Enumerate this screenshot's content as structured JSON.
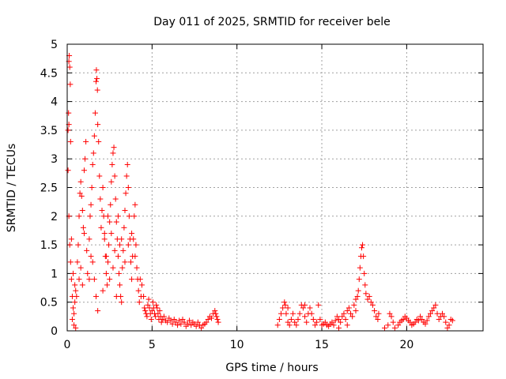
{
  "chart_data": {
    "type": "scatter",
    "title": "Day 011 of 2025, SRMTID for receiver bele",
    "xlabel": "GPS time / hours",
    "ylabel": "SRMTID / TECUs",
    "xlim": [
      0,
      24.5
    ],
    "ylim": [
      0,
      5
    ],
    "x_ticks": [
      0,
      5,
      10,
      15,
      20
    ],
    "x_tick_labels": [
      "0",
      "5",
      "10",
      "15",
      "20"
    ],
    "y_ticks": [
      0,
      0.5,
      1,
      1.5,
      2,
      2.5,
      3,
      3.5,
      4,
      4.5,
      5
    ],
    "y_tick_labels": [
      "0",
      "0.5",
      "1",
      "1.5",
      "2",
      "2.5",
      "3",
      "3.5",
      "4",
      "4.5",
      "5"
    ],
    "grid": true,
    "marker": "+",
    "series": [
      {
        "name": "SRMTID",
        "color": "#ff0000",
        "points": [
          [
            0.05,
            3.5
          ],
          [
            0.08,
            3.8
          ],
          [
            0.1,
            4.7
          ],
          [
            0.12,
            4.8
          ],
          [
            0.15,
            4.6
          ],
          [
            0.18,
            4.3
          ],
          [
            0.1,
            3.6
          ],
          [
            0.2,
            3.3
          ],
          [
            0.05,
            2.8
          ],
          [
            0.1,
            2.0
          ],
          [
            0.15,
            1.5
          ],
          [
            0.2,
            1.2
          ],
          [
            0.25,
            0.9
          ],
          [
            0.3,
            0.6
          ],
          [
            0.35,
            0.4
          ],
          [
            0.4,
            0.3
          ],
          [
            0.45,
            0.5
          ],
          [
            0.5,
            0.7
          ],
          [
            0.3,
            0.2
          ],
          [
            0.4,
            0.1
          ],
          [
            0.5,
            0.05
          ],
          [
            0.25,
            1.6
          ],
          [
            0.35,
            1.0
          ],
          [
            0.45,
            0.8
          ],
          [
            0.55,
            0.6
          ],
          [
            0.6,
            1.2
          ],
          [
            0.65,
            1.5
          ],
          [
            0.7,
            2.0
          ],
          [
            0.75,
            2.4
          ],
          [
            0.8,
            2.6
          ],
          [
            0.85,
            2.35
          ],
          [
            0.9,
            2.1
          ],
          [
            0.95,
            1.8
          ],
          [
            1.0,
            1.7
          ],
          [
            0.7,
            0.9
          ],
          [
            0.8,
            1.1
          ],
          [
            0.9,
            0.8
          ],
          [
            1.0,
            2.8
          ],
          [
            1.05,
            3.0
          ],
          [
            1.1,
            3.3
          ],
          [
            1.15,
            1.4
          ],
          [
            1.2,
            1.0
          ],
          [
            1.3,
            1.6
          ],
          [
            1.35,
            2.0
          ],
          [
            1.4,
            2.2
          ],
          [
            1.45,
            2.5
          ],
          [
            1.5,
            2.9
          ],
          [
            1.55,
            3.1
          ],
          [
            1.6,
            3.4
          ],
          [
            1.65,
            3.8
          ],
          [
            1.7,
            4.35
          ],
          [
            1.72,
            4.55
          ],
          [
            1.75,
            4.4
          ],
          [
            1.78,
            4.2
          ],
          [
            1.8,
            3.6
          ],
          [
            1.85,
            3.3
          ],
          [
            1.9,
            2.7
          ],
          [
            1.95,
            2.3
          ],
          [
            1.5,
            1.2
          ],
          [
            1.6,
            0.9
          ],
          [
            1.7,
            0.6
          ],
          [
            1.8,
            0.35
          ],
          [
            1.3,
            0.9
          ],
          [
            1.4,
            1.3
          ],
          [
            2.0,
            1.8
          ],
          [
            2.05,
            2.1
          ],
          [
            2.1,
            2.5
          ],
          [
            2.15,
            2.0
          ],
          [
            2.2,
            1.6
          ],
          [
            2.25,
            1.3
          ],
          [
            2.3,
            1.0
          ],
          [
            2.35,
            0.8
          ],
          [
            2.4,
            1.2
          ],
          [
            2.45,
            1.5
          ],
          [
            2.5,
            1.9
          ],
          [
            2.55,
            2.2
          ],
          [
            2.6,
            2.6
          ],
          [
            2.65,
            2.9
          ],
          [
            2.7,
            3.1
          ],
          [
            2.75,
            3.2
          ],
          [
            2.8,
            2.7
          ],
          [
            2.85,
            2.3
          ],
          [
            2.9,
            1.9
          ],
          [
            2.95,
            1.6
          ],
          [
            3.0,
            1.3
          ],
          [
            3.05,
            1.0
          ],
          [
            3.1,
            0.8
          ],
          [
            3.15,
            0.6
          ],
          [
            3.2,
            0.5
          ],
          [
            3.25,
            1.1
          ],
          [
            3.3,
            1.4
          ],
          [
            3.35,
            1.8
          ],
          [
            3.4,
            2.1
          ],
          [
            3.45,
            2.4
          ],
          [
            3.5,
            2.7
          ],
          [
            3.55,
            2.9
          ],
          [
            3.6,
            2.5
          ],
          [
            3.65,
            2.0
          ],
          [
            3.7,
            1.6
          ],
          [
            3.75,
            1.2
          ],
          [
            3.8,
            0.9
          ],
          [
            3.85,
            1.3
          ],
          [
            3.9,
            1.6
          ],
          [
            3.95,
            2.0
          ],
          [
            4.0,
            2.2
          ],
          [
            4.05,
            1.5
          ],
          [
            4.1,
            1.1
          ],
          [
            4.15,
            0.9
          ],
          [
            4.2,
            0.7
          ],
          [
            4.25,
            0.5
          ],
          [
            4.3,
            0.9
          ],
          [
            4.35,
            0.6
          ],
          [
            2.2,
            1.7
          ],
          [
            2.4,
            2.0
          ],
          [
            2.6,
            1.7
          ],
          [
            2.8,
            1.4
          ],
          [
            3.0,
            2.0
          ],
          [
            3.2,
            1.6
          ],
          [
            3.4,
            1.2
          ],
          [
            3.6,
            1.5
          ],
          [
            3.8,
            1.7
          ],
          [
            4.0,
            1.3
          ],
          [
            2.1,
            0.7
          ],
          [
            2.3,
            1.3
          ],
          [
            2.5,
            0.9
          ],
          [
            2.7,
            1.1
          ],
          [
            2.9,
            0.6
          ],
          [
            3.1,
            1.5
          ],
          [
            4.4,
            0.8
          ],
          [
            4.5,
            0.6
          ],
          [
            4.55,
            0.4
          ],
          [
            4.6,
            0.35
          ],
          [
            4.65,
            0.3
          ],
          [
            4.7,
            0.25
          ],
          [
            4.75,
            0.45
          ],
          [
            4.8,
            0.55
          ],
          [
            4.85,
            0.4
          ],
          [
            4.9,
            0.3
          ],
          [
            4.95,
            0.2
          ],
          [
            5.0,
            0.35
          ],
          [
            5.05,
            0.5
          ],
          [
            5.1,
            0.4
          ],
          [
            5.15,
            0.3
          ],
          [
            5.2,
            0.25
          ],
          [
            5.25,
            0.45
          ],
          [
            5.3,
            0.4
          ],
          [
            5.35,
            0.3
          ],
          [
            5.4,
            0.2
          ],
          [
            5.45,
            0.35
          ],
          [
            5.5,
            0.25
          ],
          [
            5.55,
            0.15
          ],
          [
            5.6,
            0.2
          ],
          [
            5.7,
            0.25
          ],
          [
            5.8,
            0.18
          ],
          [
            5.9,
            0.15
          ],
          [
            6.0,
            0.22
          ],
          [
            6.1,
            0.18
          ],
          [
            6.2,
            0.12
          ],
          [
            6.3,
            0.2
          ],
          [
            6.4,
            0.15
          ],
          [
            6.5,
            0.1
          ],
          [
            6.6,
            0.18
          ],
          [
            6.7,
            0.12
          ],
          [
            6.8,
            0.2
          ],
          [
            6.9,
            0.15
          ],
          [
            7.0,
            0.08
          ],
          [
            7.1,
            0.12
          ],
          [
            7.2,
            0.18
          ],
          [
            7.3,
            0.1
          ],
          [
            7.4,
            0.15
          ],
          [
            7.5,
            0.12
          ],
          [
            7.6,
            0.08
          ],
          [
            7.7,
            0.15
          ],
          [
            7.8,
            0.1
          ],
          [
            7.9,
            0.05
          ],
          [
            8.0,
            0.1
          ],
          [
            8.1,
            0.12
          ],
          [
            8.2,
            0.15
          ],
          [
            8.3,
            0.2
          ],
          [
            8.4,
            0.25
          ],
          [
            8.5,
            0.22
          ],
          [
            8.6,
            0.3
          ],
          [
            8.7,
            0.35
          ],
          [
            8.75,
            0.3
          ],
          [
            8.8,
            0.25
          ],
          [
            8.85,
            0.2
          ],
          [
            8.9,
            0.15
          ],
          [
            12.4,
            0.1
          ],
          [
            12.5,
            0.2
          ],
          [
            12.6,
            0.3
          ],
          [
            12.7,
            0.4
          ],
          [
            12.8,
            0.5
          ],
          [
            12.85,
            0.45
          ],
          [
            12.9,
            0.3
          ],
          [
            13.0,
            0.15
          ],
          [
            13.1,
            0.1
          ],
          [
            13.2,
            0.2
          ],
          [
            13.3,
            0.3
          ],
          [
            13.4,
            0.15
          ],
          [
            13.5,
            0.1
          ],
          [
            13.6,
            0.2
          ],
          [
            13.7,
            0.3
          ],
          [
            13.8,
            0.45
          ],
          [
            13.9,
            0.4
          ],
          [
            14.0,
            0.25
          ],
          [
            14.1,
            0.15
          ],
          [
            14.2,
            0.3
          ],
          [
            14.3,
            0.4
          ],
          [
            14.4,
            0.3
          ],
          [
            14.5,
            0.2
          ],
          [
            14.6,
            0.1
          ],
          [
            14.7,
            0.15
          ],
          [
            14.8,
            0.45
          ],
          [
            14.9,
            0.2
          ],
          [
            15.0,
            0.1
          ],
          [
            15.1,
            0.12
          ],
          [
            15.2,
            0.15
          ],
          [
            15.3,
            0.1
          ],
          [
            15.4,
            0.08
          ],
          [
            15.5,
            0.12
          ],
          [
            15.6,
            0.15
          ],
          [
            15.7,
            0.1
          ],
          [
            15.8,
            0.18
          ],
          [
            15.9,
            0.25
          ],
          [
            16.0,
            0.2
          ],
          [
            16.1,
            0.15
          ],
          [
            16.2,
            0.25
          ],
          [
            16.3,
            0.3
          ],
          [
            16.4,
            0.2
          ],
          [
            16.5,
            0.35
          ],
          [
            16.6,
            0.4
          ],
          [
            16.7,
            0.3
          ],
          [
            16.8,
            0.25
          ],
          [
            16.9,
            0.45
          ],
          [
            17.0,
            0.55
          ],
          [
            17.1,
            0.6
          ],
          [
            17.15,
            0.7
          ],
          [
            17.2,
            0.9
          ],
          [
            17.25,
            1.1
          ],
          [
            17.3,
            1.3
          ],
          [
            17.35,
            1.45
          ],
          [
            17.4,
            1.5
          ],
          [
            17.45,
            1.3
          ],
          [
            17.5,
            1.0
          ],
          [
            17.55,
            0.8
          ],
          [
            17.6,
            0.65
          ],
          [
            17.7,
            0.55
          ],
          [
            17.8,
            0.6
          ],
          [
            17.9,
            0.5
          ],
          [
            18.0,
            0.45
          ],
          [
            18.1,
            0.35
          ],
          [
            18.2,
            0.25
          ],
          [
            18.3,
            0.2
          ],
          [
            18.35,
            0.3
          ],
          [
            16.5,
            0.1
          ],
          [
            13.0,
            0.4
          ],
          [
            14.0,
            0.45
          ],
          [
            16.0,
            0.05
          ],
          [
            17.0,
            0.35
          ],
          [
            18.7,
            0.05
          ],
          [
            18.9,
            0.1
          ],
          [
            19.0,
            0.3
          ],
          [
            19.1,
            0.25
          ],
          [
            19.2,
            0.15
          ],
          [
            19.3,
            0.05
          ],
          [
            19.5,
            0.1
          ],
          [
            19.6,
            0.15
          ],
          [
            19.7,
            0.18
          ],
          [
            19.8,
            0.2
          ],
          [
            19.9,
            0.25
          ],
          [
            20.0,
            0.22
          ],
          [
            20.1,
            0.18
          ],
          [
            20.2,
            0.15
          ],
          [
            20.3,
            0.1
          ],
          [
            20.4,
            0.12
          ],
          [
            20.5,
            0.15
          ],
          [
            20.6,
            0.2
          ],
          [
            20.7,
            0.18
          ],
          [
            20.8,
            0.25
          ],
          [
            20.9,
            0.2
          ],
          [
            21.0,
            0.15
          ],
          [
            21.1,
            0.12
          ],
          [
            21.2,
            0.18
          ],
          [
            21.3,
            0.25
          ],
          [
            21.4,
            0.3
          ],
          [
            21.5,
            0.35
          ],
          [
            21.6,
            0.4
          ],
          [
            21.7,
            0.45
          ],
          [
            21.8,
            0.3
          ],
          [
            21.9,
            0.2
          ],
          [
            22.0,
            0.25
          ],
          [
            22.1,
            0.3
          ],
          [
            22.2,
            0.25
          ],
          [
            22.3,
            0.15
          ],
          [
            22.4,
            0.05
          ],
          [
            22.5,
            0.1
          ],
          [
            22.6,
            0.2
          ],
          [
            22.7,
            0.18
          ]
        ]
      }
    ]
  }
}
